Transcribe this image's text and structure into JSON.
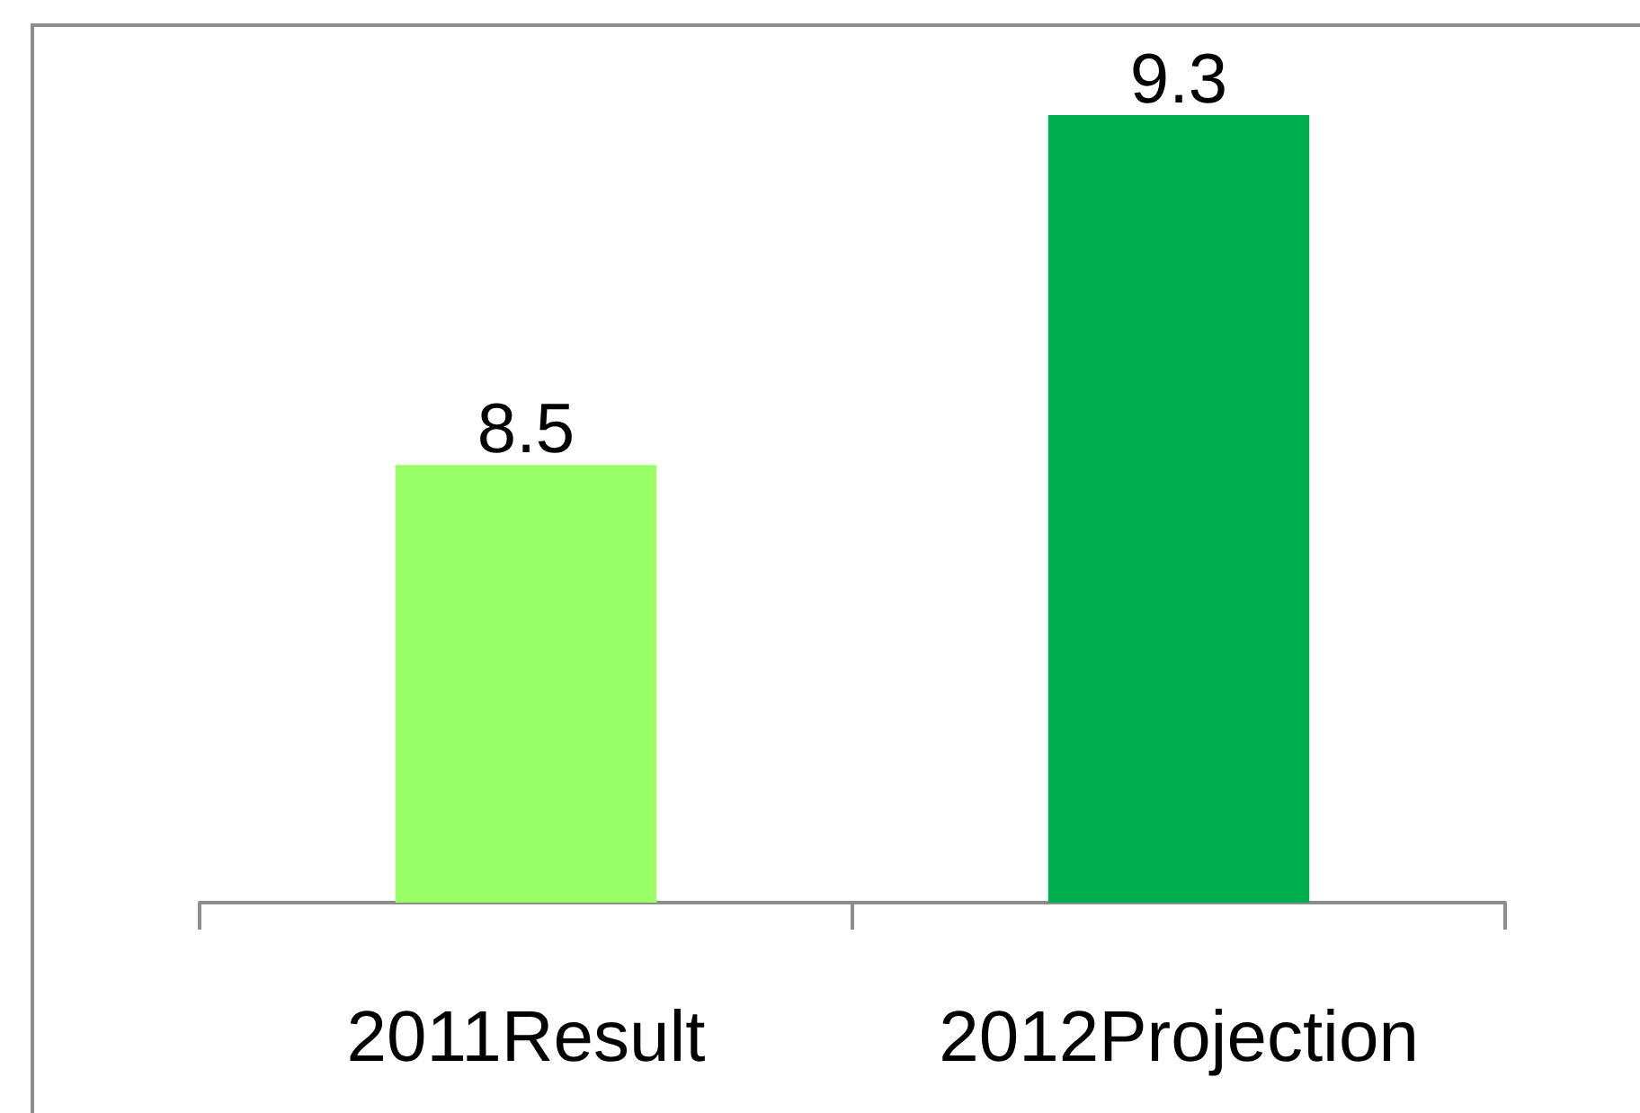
{
  "chart_data": {
    "type": "bar",
    "categories": [
      "2011Result",
      "2012Projection"
    ],
    "values": [
      8.5,
      9.3
    ],
    "colors": [
      "#99ff66",
      "#00b050"
    ],
    "ylim": [
      7.5,
      9.3
    ],
    "tick_labels": "x",
    "data_labels": true
  }
}
